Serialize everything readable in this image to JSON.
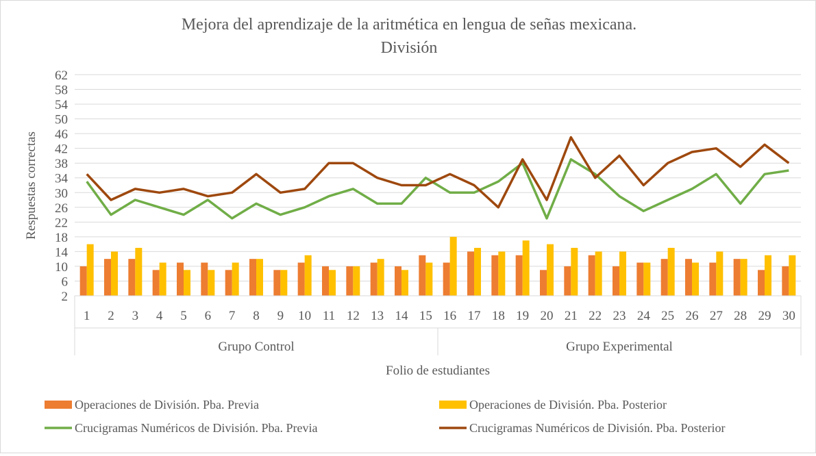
{
  "chart_data": {
    "type": "bar+line",
    "title": "Mejora del aprendizaje de la aritmética en lengua de señas mexicana.",
    "subtitle": "División",
    "ylabel": "Respuestas correctas",
    "xlabel": "Folio de estudiantes",
    "ylim": [
      2,
      62
    ],
    "yticks": [
      2,
      6,
      10,
      14,
      18,
      22,
      26,
      30,
      34,
      38,
      42,
      46,
      50,
      54,
      58,
      62
    ],
    "grid": true,
    "legend_position": "bottom",
    "categories": [
      "1",
      "2",
      "3",
      "4",
      "5",
      "6",
      "7",
      "8",
      "9",
      "10",
      "11",
      "12",
      "13",
      "14",
      "15",
      "16",
      "17",
      "18",
      "19",
      "20",
      "21",
      "22",
      "23",
      "24",
      "25",
      "26",
      "27",
      "28",
      "29",
      "30"
    ],
    "groups": [
      {
        "label": "Grupo Control",
        "count": 15
      },
      {
        "label": "Grupo Experimental",
        "count": 15
      }
    ],
    "series": [
      {
        "name": "Operaciones de División. Pba. Previa",
        "type": "bar",
        "color": "#ED7D31",
        "values": [
          10,
          12,
          12,
          9,
          11,
          11,
          9,
          12,
          9,
          11,
          10,
          10,
          11,
          10,
          13,
          11,
          14,
          13,
          13,
          9,
          10,
          13,
          10,
          11,
          12,
          12,
          11,
          12,
          9,
          10
        ]
      },
      {
        "name": "Operaciones de División. Pba. Posterior",
        "type": "bar",
        "color": "#FFC000",
        "values": [
          16,
          14,
          15,
          11,
          9,
          9,
          11,
          12,
          9,
          13,
          9,
          10,
          12,
          9,
          11,
          18,
          15,
          14,
          17,
          16,
          15,
          14,
          14,
          11,
          15,
          11,
          14,
          12,
          13,
          13
        ]
      },
      {
        "name": "Crucigramas Numéricos de División. Pba. Previa",
        "type": "line",
        "color": "#70AD47",
        "values": [
          33,
          24,
          28,
          26,
          24,
          28,
          23,
          27,
          24,
          26,
          29,
          31,
          27,
          27,
          34,
          30,
          30,
          33,
          38,
          23,
          39,
          35,
          29,
          25,
          28,
          31,
          35,
          27,
          35,
          36
        ]
      },
      {
        "name": "Crucigramas Numéricos de División. Pba. Posterior",
        "type": "line",
        "color": "#9E480E",
        "values": [
          35,
          28,
          31,
          30,
          31,
          29,
          30,
          35,
          30,
          31,
          38,
          38,
          34,
          32,
          32,
          35,
          32,
          26,
          39,
          28,
          45,
          34,
          40,
          32,
          38,
          41,
          42,
          37,
          43,
          38
        ]
      }
    ]
  }
}
